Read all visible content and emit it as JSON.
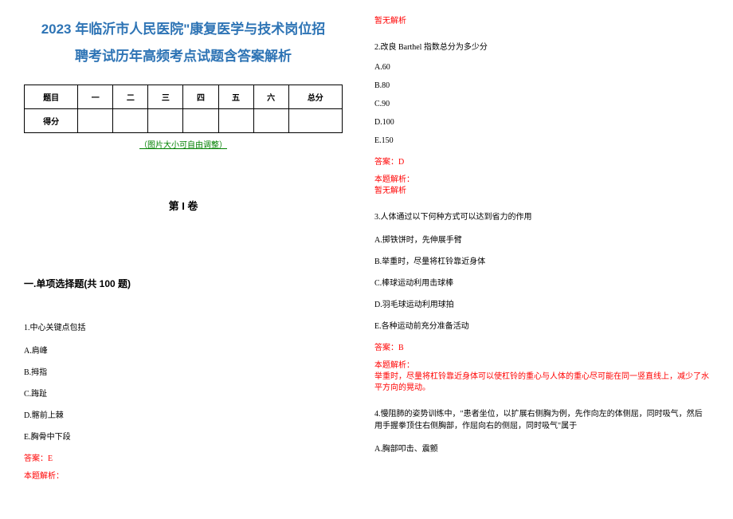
{
  "title_line1": "2023 年临沂市人民医院\"康复医学与技术岗位招",
  "title_line2": "聘考试历年高频考点试题含答案解析",
  "scoreTable": {
    "headers": [
      "题目",
      "一",
      "二",
      "三",
      "四",
      "五",
      "六",
      "总分"
    ],
    "scoreLabel": "得分"
  },
  "tableNote": "（图片大小可自由调整）",
  "volumeTitle": "第 I 卷",
  "sectionTitle": "一.单项选择题(共 100 题)",
  "q1": {
    "text": "1.中心关键点包括",
    "optA": "A.肩峰",
    "optB": "B.拇指",
    "optC": "C.踇趾",
    "optD": "D.髂前上棘",
    "optE": "E.胸骨中下段",
    "answer": "答案：E",
    "analysisLabel": "本题解析：",
    "analysisText": "暂无解析"
  },
  "q2": {
    "text": "2.改良 Barthel 指数总分为多少分",
    "optA": "A.60",
    "optB": "B.80",
    "optC": "C.90",
    "optD": "D.100",
    "optE": "E.150",
    "answer": "答案：D",
    "analysisLabel": "本题解析：",
    "analysisText": "暂无解析"
  },
  "q3": {
    "text": "3.人体通过以下何种方式可以达到省力的作用",
    "optA": "A.掷铁饼时，先伸展手臂",
    "optB": "B.举重时，尽量将杠铃靠近身体",
    "optC": "C.棒球运动利用击球棒",
    "optD": "D.羽毛球运动利用球拍",
    "optE": "E.各种运动前充分准备活动",
    "answer": "答案：B",
    "analysisLabel": "本题解析：",
    "analysisText": "举重时，尽量将杠铃靠近身体可以使杠铃的重心与人体的重心尽可能在同一竖直线上，减少了水平方向的晃动。"
  },
  "q4": {
    "text": "4.慢阻肺的姿势训练中，\"患者坐位，以扩展右侧胸为例，先作向左的体侧屈，同时吸气，然后用手握拳顶住右侧胸部，作屈向右的侧屈，同时吸气\"属于",
    "optA": "A.胸部叩击、震颤"
  },
  "colors": {
    "titleColor": "#2e74b5",
    "noteColor": "#008000",
    "answerColor": "#ff0000",
    "textColor": "#000000",
    "background": "#ffffff",
    "borderColor": "#000000"
  }
}
